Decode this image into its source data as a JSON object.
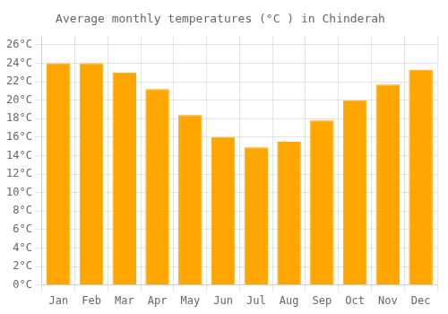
{
  "chart_data": {
    "type": "bar",
    "title": "Average monthly temperatures (°C ) in Chinderah",
    "categories": [
      "Jan",
      "Feb",
      "Mar",
      "Apr",
      "May",
      "Jun",
      "Jul",
      "Aug",
      "Sep",
      "Oct",
      "Nov",
      "Dec"
    ],
    "values": [
      24.0,
      24.0,
      23.0,
      21.2,
      18.4,
      16.0,
      14.9,
      15.5,
      17.8,
      20.0,
      21.7,
      23.3
    ],
    "color": "#FFA500",
    "ylim": [
      0,
      27
    ],
    "yticks": [
      {
        "value": 0,
        "label": "0°C"
      },
      {
        "value": 2,
        "label": "2°C"
      },
      {
        "value": 4,
        "label": "4°C"
      },
      {
        "value": 6,
        "label": "6°C"
      },
      {
        "value": 8,
        "label": "8°C"
      },
      {
        "value": 10,
        "label": "10°C"
      },
      {
        "value": 12,
        "label": "12°C"
      },
      {
        "value": 14,
        "label": "14°C"
      },
      {
        "value": 16,
        "label": "16°C"
      },
      {
        "value": 18,
        "label": "18°C"
      },
      {
        "value": 20,
        "label": "20°C"
      },
      {
        "value": 22,
        "label": "22°C"
      },
      {
        "value": 24,
        "label": "24°C"
      },
      {
        "value": 26,
        "label": "26°C"
      }
    ],
    "grid": true
  }
}
